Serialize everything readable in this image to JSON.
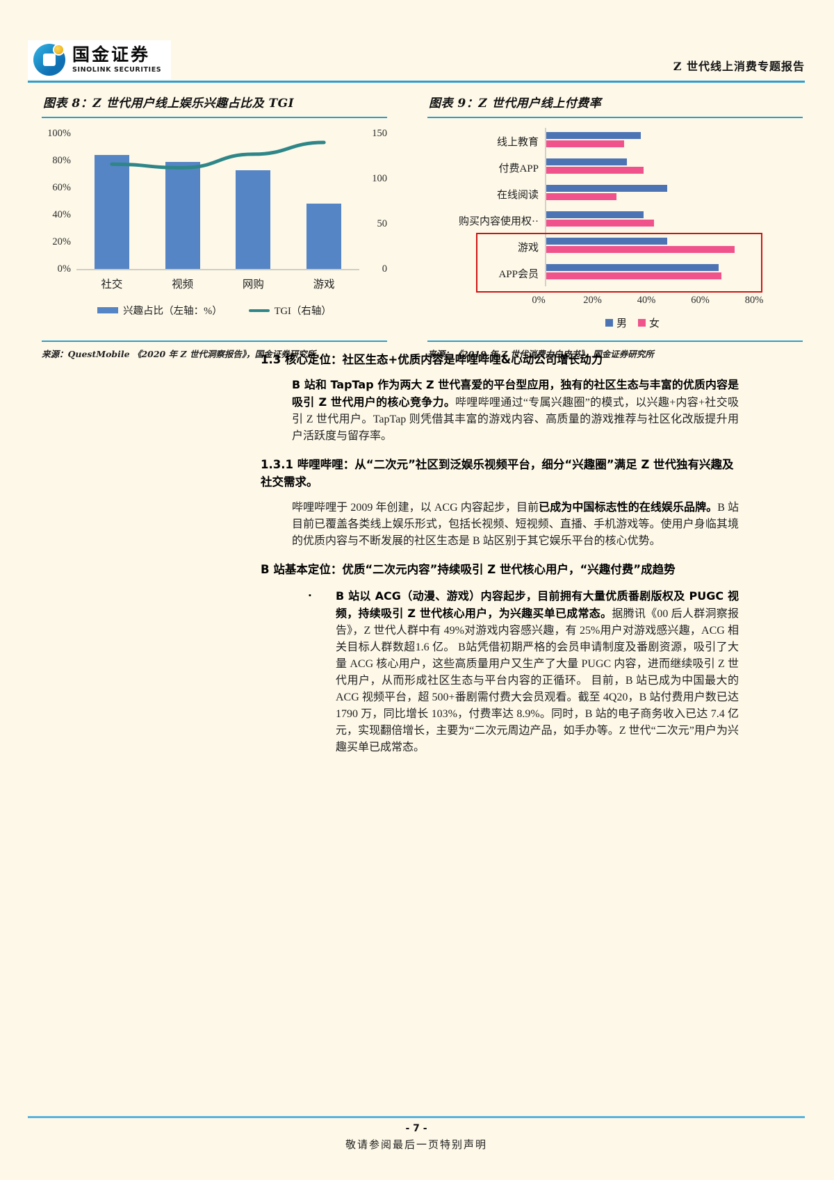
{
  "header": {
    "logo_zh": "国金证券",
    "logo_en": "SINOLINK SECURITIES",
    "report_title": "Z 世代线上消费专题报告"
  },
  "colors": {
    "accent_cyan": "#2E9EC8",
    "fig8_bar_blue": "#5585C5",
    "fig8_line_teal": "#2E8688",
    "fig9_male_blue": "#4C74B5",
    "fig9_female_pink": "#F0538C",
    "highlight_red": "#CC1414",
    "page_bg": "#FDF8E8"
  },
  "chart_data": [
    {
      "type": "bar+line",
      "title": "图表 8：Z 世代用户线上娱乐兴趣占比及 TGI",
      "categories": [
        "社交",
        "视频",
        "网购",
        "游戏"
      ],
      "series": [
        {
          "name": "兴趣占比（左轴：%）",
          "type": "bar",
          "axis": "left",
          "color": "#5585C5",
          "values": [
            84,
            79,
            73,
            48
          ]
        },
        {
          "name": "TGI（右轴）",
          "type": "line",
          "axis": "right",
          "color": "#2E8688",
          "values": [
            116,
            112,
            127,
            140
          ]
        }
      ],
      "left_axis": {
        "min": 0,
        "max": 100,
        "ticks": [
          0,
          20,
          40,
          60,
          80,
          100
        ],
        "unit": "%"
      },
      "right_axis": {
        "min": 0,
        "max": 150,
        "ticks": [
          0,
          50,
          100,
          150
        ]
      },
      "grid": false,
      "legend_position": "bottom",
      "source": "来源：QuestMobile 《2020 年 Z 世代洞察报告》，国金证券研究所"
    },
    {
      "type": "bar-horizontal",
      "title": "图表 9：Z 世代用户线上付费率",
      "categories": [
        "线上教育",
        "付费APP",
        "在线阅读",
        "购买内容使用权··",
        "游戏",
        "APP会员"
      ],
      "series": [
        {
          "name": "男",
          "color": "#4C74B5",
          "values": [
            35,
            30,
            45,
            36,
            45,
            64
          ]
        },
        {
          "name": "女",
          "color": "#F0538C",
          "values": [
            29,
            36,
            26,
            40,
            70,
            65
          ]
        }
      ],
      "x_axis": {
        "min": 0,
        "max": 80,
        "ticks": [
          0,
          20,
          40,
          60,
          80
        ],
        "unit": "%"
      },
      "highlighted_categories": [
        "游戏",
        "APP会员"
      ],
      "legend_position": "bottom",
      "source": "来源：《2019 年 Z 世代消费力白皮书》，国金证券研究所"
    }
  ],
  "content": {
    "s13_title": "1.3 核心定位：社区生态+优质内容是哔哩哔哩&心动公司增长动力",
    "p1_bold": "B 站和 TapTap 作为两大 Z 世代喜爱的平台型应用，独有的社区生态与丰富的优质内容是吸引 Z 世代用户的核心竞争力。",
    "p1_rest": "哔哩哔哩通过“专属兴趣圈”的模式，以兴趣+内容+社交吸引 Z 世代用户。TapTap 则凭借其丰富的游戏内容、高质量的游戏推荐与社区化改版提升用户活跃度与留存率。",
    "s131_title": "1.3.1 哔哩哔哩：从“二次元”社区到泛娱乐视频平台，细分“兴趣圈”满足 Z 世代独有兴趣及社交需求。",
    "p2_pre": "哔哩哔哩于 2009 年创建，以 ACG 内容起步，目前",
    "p2_bold": "已成为中国标志性的在线娱乐品牌。",
    "p2_rest": "B 站目前已覆盖各类线上娱乐形式，包括长视频、短视频、直播、手机游戏等。使用户身临其境的优质内容与不断发展的社区生态是 B 站区别于其它娱乐平台的核心优势。",
    "bdef_title": "B 站基本定位：优质“二次元内容”持续吸引 Z 世代核心用户，“兴趣付费”成趋势",
    "bullet_marker": "▪",
    "bullet_bold": "B 站以 ACG（动漫、游戏）内容起步，目前拥有大量优质番剧版权及 PUGC 视频，持续吸引 Z 世代核心用户，为兴趣买单已成常态。",
    "bullet_rest": "据腾讯《00 后人群洞察报告》，Z 世代人群中有 49%对游戏内容感兴趣，有 25%用户对游戏感兴趣，ACG 相关目标人群数超1.6 亿。 B站凭借初期严格的会员申请制度及番剧资源，吸引了大量 ACG 核心用户，这些高质量用户又生产了大量 PUGC 内容，进而继续吸引 Z 世代用户，从而形成社区生态与平台内容的正循环。 目前，B 站已成为中国最大的 ACG 视频平台，超 500+番剧需付费大会员观看。截至 4Q20，B 站付费用户数已达 1790 万，同比增长 103%，付费率达 8.9%。同时，B 站的电子商务收入已达 7.4 亿元，实现翻倍增长，主要为“二次元周边产品，如手办等。Z 世代“二次元”用户为兴趣买单已成常态。"
  },
  "footer": {
    "page_number": "- 7 -",
    "disclaimer": "敬请参阅最后一页特别声明"
  }
}
